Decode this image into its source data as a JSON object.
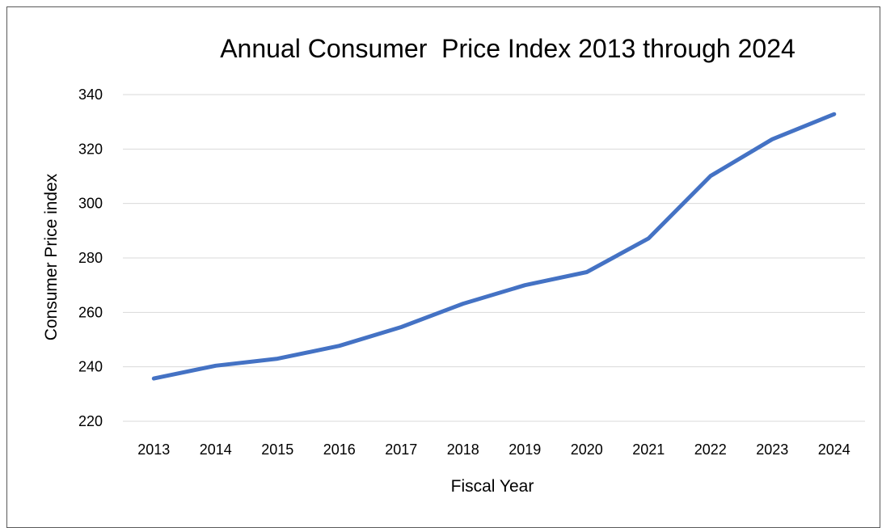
{
  "chart_data": {
    "type": "line",
    "title": "Annual Consumer  Price Index 2013 through 2024",
    "xlabel": "Fiscal Year",
    "ylabel": "Consumer Price index",
    "categories": [
      "2013",
      "2014",
      "2015",
      "2016",
      "2017",
      "2018",
      "2019",
      "2020",
      "2021",
      "2022",
      "2023",
      "2024"
    ],
    "series": [
      {
        "values": [
          235.7,
          240.4,
          243.0,
          247.7,
          254.6,
          263.2,
          270.0,
          274.8,
          287.2,
          310.1,
          323.6,
          332.8
        ]
      }
    ],
    "ylim": [
      220,
      340
    ],
    "yticks": [
      220,
      240,
      260,
      280,
      300,
      320,
      340
    ],
    "grid": true,
    "legend": "none",
    "line_color": "#4472c4"
  }
}
